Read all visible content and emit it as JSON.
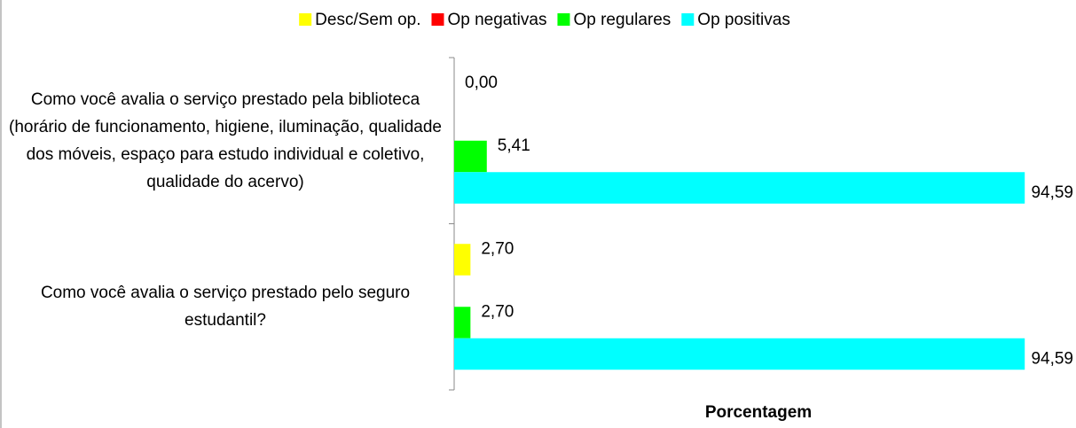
{
  "chart_data": {
    "type": "bar",
    "orientation": "horizontal",
    "categories": [
      "Como você avalia o serviço prestado pela biblioteca (horário de funcionamento, higiene, iluminação, qualidade dos móveis, espaço para estudo individual e coletivo, qualidade do acervo)",
      "Como você avalia o serviço prestado pelo seguro estudantil?"
    ],
    "series": [
      {
        "name": "Desc/Sem op.",
        "color": "#ffff00",
        "values": [
          0,
          2.7
        ],
        "value_labels": [
          "0,00",
          "2,70"
        ]
      },
      {
        "name": "Op negativas",
        "color": "#ff0000",
        "values": [
          null,
          null
        ]
      },
      {
        "name": "Op regulares",
        "color": "#00ff00",
        "values": [
          5.41,
          2.7
        ],
        "value_labels": [
          "5,41",
          "2,70"
        ]
      },
      {
        "name": "Op positivas",
        "color": "#00ffff",
        "values": [
          94.59,
          94.59
        ],
        "value_labels": [
          "94,59",
          "94,59"
        ]
      }
    ],
    "xlabel": "Porcentagem",
    "xlim": [
      0,
      100
    ],
    "legend": "top"
  }
}
